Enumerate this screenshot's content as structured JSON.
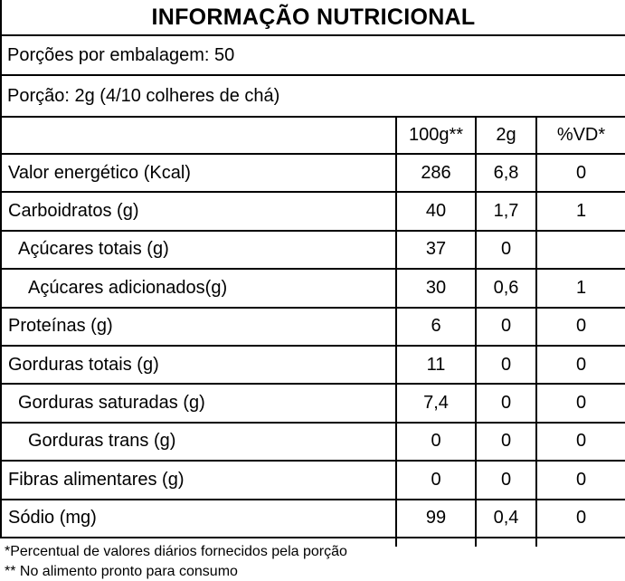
{
  "title": "INFORMAÇÃO NUTRICIONAL",
  "servings_line": "Porções por embalagem: 50",
  "portion_line": "Porção: 2g (4/10 colheres de chá)",
  "colors": {
    "text": "#000000",
    "background": "#ffffff",
    "border": "#000000"
  },
  "table": {
    "columns": [
      "100g**",
      "2g",
      "%VD*"
    ],
    "rows": [
      {
        "label": "Valor energético (Kcal)",
        "indent": 0,
        "per100g": "286",
        "per2g": "6,8",
        "vd": "0"
      },
      {
        "label": "Carboidratos (g)",
        "indent": 0,
        "per100g": "40",
        "per2g": "1,7",
        "vd": "1"
      },
      {
        "label": "Açúcares totais (g)",
        "indent": 1,
        "per100g": "37",
        "per2g": "0",
        "vd": ""
      },
      {
        "label": "Açúcares adicionados(g)",
        "indent": 2,
        "per100g": "30",
        "per2g": "0,6",
        "vd": "1"
      },
      {
        "label": "Proteínas (g)",
        "indent": 0,
        "per100g": "6",
        "per2g": "0",
        "vd": "0"
      },
      {
        "label": "Gorduras totais (g)",
        "indent": 0,
        "per100g": "11",
        "per2g": "0",
        "vd": "0"
      },
      {
        "label": "Gorduras saturadas (g)",
        "indent": 1,
        "per100g": "7,4",
        "per2g": "0",
        "vd": "0"
      },
      {
        "label": "Gorduras trans (g)",
        "indent": 2,
        "per100g": "0",
        "per2g": "0",
        "vd": "0"
      },
      {
        "label": "Fibras alimentares (g)",
        "indent": 0,
        "per100g": "0",
        "per2g": "0",
        "vd": "0"
      },
      {
        "label": "Sódio (mg)",
        "indent": 0,
        "per100g": "99",
        "per2g": "0,4",
        "vd": "0"
      }
    ]
  },
  "footnotes": [
    "*Percentual de valores diários fornecidos pela porção",
    "** No alimento pronto para consumo"
  ]
}
